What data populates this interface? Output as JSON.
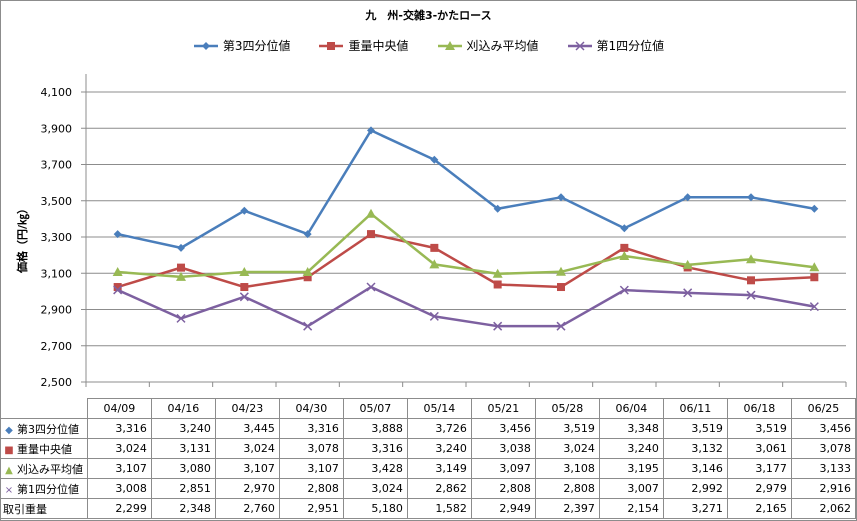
{
  "chart_data": {
    "type": "line",
    "title": "九　州-交雑3-かたロース",
    "ylabel": "価格（円/㎏）",
    "xlabel": "",
    "ylim": [
      2500,
      4100
    ],
    "yticks": [
      "2,500",
      "2,700",
      "2,900",
      "3,100",
      "3,300",
      "3,500",
      "3,700",
      "3,900",
      "4,100"
    ],
    "ytick_values": [
      2500,
      2700,
      2900,
      3100,
      3300,
      3500,
      3700,
      3900,
      4100
    ],
    "grid": true,
    "legend_position": "top",
    "categories": [
      "04/09",
      "04/16",
      "04/23",
      "04/30",
      "05/07",
      "05/14",
      "05/21",
      "05/28",
      "06/04",
      "06/11",
      "06/18",
      "06/25"
    ],
    "series": [
      {
        "name": "第3四分位値",
        "color": "#4a7ebb",
        "marker": "diamond",
        "values": [
          3316,
          3240,
          3445,
          3316,
          3888,
          3726,
          3456,
          3519,
          3348,
          3519,
          3519,
          3456
        ],
        "labels": [
          "3,316",
          "3,240",
          "3,445",
          "3,316",
          "3,888",
          "3,726",
          "3,456",
          "3,519",
          "3,348",
          "3,519",
          "3,519",
          "3,456"
        ]
      },
      {
        "name": "重量中央値",
        "color": "#be4b48",
        "marker": "square",
        "values": [
          3024,
          3131,
          3024,
          3078,
          3316,
          3240,
          3038,
          3024,
          3240,
          3132,
          3061,
          3078
        ],
        "labels": [
          "3,024",
          "3,131",
          "3,024",
          "3,078",
          "3,316",
          "3,240",
          "3,038",
          "3,024",
          "3,240",
          "3,132",
          "3,061",
          "3,078"
        ]
      },
      {
        "name": "刈込み平均値",
        "color": "#98b954",
        "marker": "triangle",
        "values": [
          3107,
          3080,
          3107,
          3107,
          3428,
          3149,
          3097,
          3108,
          3195,
          3146,
          3177,
          3133
        ],
        "labels": [
          "3,107",
          "3,080",
          "3,107",
          "3,107",
          "3,428",
          "3,149",
          "3,097",
          "3,108",
          "3,195",
          "3,146",
          "3,177",
          "3,133"
        ]
      },
      {
        "name": "第1四分位値",
        "color": "#7d60a0",
        "marker": "x",
        "values": [
          3008,
          2851,
          2970,
          2808,
          3024,
          2862,
          2808,
          2808,
          3007,
          2992,
          2979,
          2916
        ],
        "labels": [
          "3,008",
          "2,851",
          "2,970",
          "2,808",
          "3,024",
          "2,862",
          "2,808",
          "2,808",
          "3,007",
          "2,992",
          "2,979",
          "2,916"
        ]
      }
    ],
    "extra_rows": [
      {
        "name": "取引重量",
        "values": [
          2299,
          2348,
          2760,
          2951,
          5180,
          1582,
          2949,
          2397,
          2154,
          3271,
          2165,
          2062
        ],
        "labels": [
          "2,299",
          "2,348",
          "2,760",
          "2,951",
          "5,180",
          "1,582",
          "2,949",
          "2,397",
          "2,154",
          "3,271",
          "2,165",
          "2,062"
        ]
      }
    ]
  }
}
